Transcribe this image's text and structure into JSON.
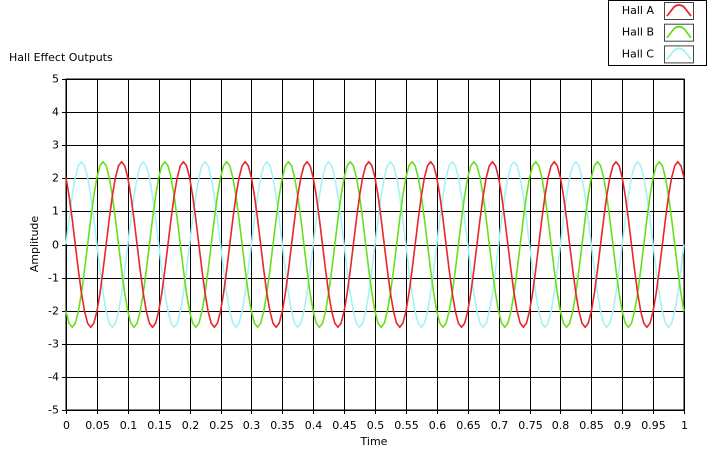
{
  "chart_data": {
    "type": "line",
    "title": "Hall Effect Outputs",
    "xlabel": "Time",
    "ylabel": "Amplitude",
    "xlim": [
      0,
      1
    ],
    "ylim": [
      -5,
      5
    ],
    "xticks": [
      0,
      0.05,
      0.1,
      0.15,
      0.2,
      0.25,
      0.3,
      0.35,
      0.4,
      0.45,
      0.5,
      0.55,
      0.6,
      0.65,
      0.7,
      0.75,
      0.8,
      0.85,
      0.9,
      0.95,
      1
    ],
    "yticks": [
      -5,
      -4,
      -3,
      -2,
      -1,
      0,
      1,
      2,
      3,
      4,
      5
    ],
    "grid": true,
    "legend": "top-right",
    "x": [
      0,
      0.005,
      0.01,
      0.015,
      0.02,
      0.025,
      0.03,
      0.035,
      0.04,
      0.045,
      0.05,
      0.055,
      0.06,
      0.065,
      0.07,
      0.075,
      0.08,
      0.085,
      0.09,
      0.095,
      0.1,
      0.105,
      0.11,
      0.115,
      0.12,
      0.125,
      0.13,
      0.135,
      0.14,
      0.145,
      0.15,
      0.155,
      0.16,
      0.165,
      0.17,
      0.175,
      0.18,
      0.185,
      0.19,
      0.195,
      0.2,
      0.205,
      0.21,
      0.215,
      0.22,
      0.225,
      0.23,
      0.235,
      0.24,
      0.245,
      0.25,
      0.255,
      0.26,
      0.265,
      0.27,
      0.275,
      0.28,
      0.285,
      0.29,
      0.295,
      0.3,
      0.305,
      0.31,
      0.315,
      0.32,
      0.325,
      0.33,
      0.335,
      0.34,
      0.345,
      0.35,
      0.355,
      0.36,
      0.365,
      0.37,
      0.375,
      0.38,
      0.385,
      0.39,
      0.395,
      0.4,
      0.405,
      0.41,
      0.415,
      0.42,
      0.425,
      0.43,
      0.435,
      0.44,
      0.445,
      0.45,
      0.455,
      0.46,
      0.465,
      0.47,
      0.475,
      0.48,
      0.485,
      0.49,
      0.495,
      0.5,
      0.505,
      0.51,
      0.515,
      0.52,
      0.525,
      0.53,
      0.535,
      0.54,
      0.545,
      0.55,
      0.555,
      0.56,
      0.565,
      0.57,
      0.575,
      0.58,
      0.585,
      0.59,
      0.595,
      0.6,
      0.605,
      0.61,
      0.615,
      0.62,
      0.625,
      0.63,
      0.635,
      0.64,
      0.645,
      0.65,
      0.655,
      0.66,
      0.665,
      0.67,
      0.675,
      0.68,
      0.685,
      0.69,
      0.695,
      0.7,
      0.705,
      0.71,
      0.715,
      0.72,
      0.725,
      0.73,
      0.735,
      0.74,
      0.745,
      0.75,
      0.755,
      0.76,
      0.765,
      0.77,
      0.775,
      0.78,
      0.785,
      0.79,
      0.795,
      0.8,
      0.805,
      0.81,
      0.815,
      0.82,
      0.825,
      0.83,
      0.835,
      0.84,
      0.845,
      0.85,
      0.855,
      0.86,
      0.865,
      0.87,
      0.875,
      0.88,
      0.885,
      0.89,
      0.895,
      0.9,
      0.905,
      0.91,
      0.915,
      0.92,
      0.925,
      0.93,
      0.935,
      0.94,
      0.945,
      0.95,
      0.955,
      0.96,
      0.965,
      0.97,
      0.975,
      0.98,
      0.985,
      0.99,
      0.995,
      1
    ],
    "series": [
      {
        "name": "Hall A",
        "color": "#e8262a",
        "values": [
          2.02,
          1.47,
          0.77,
          0,
          -0.77,
          -1.47,
          -2.02,
          -2.38,
          -2.5,
          -2.38,
          -2.02,
          -1.47,
          -0.77,
          0,
          0.77,
          1.47,
          2.02,
          2.38,
          2.5,
          2.38,
          2.02,
          1.47,
          0.77,
          0,
          -0.77,
          -1.47,
          -2.02,
          -2.38,
          -2.5,
          -2.38,
          -2.02,
          -1.47,
          -0.77,
          0,
          0.77,
          1.47,
          2.02,
          2.38,
          2.5,
          2.38,
          2.02,
          1.47,
          0.77,
          0,
          -0.77,
          -1.47,
          -2.02,
          -2.38,
          -2.5,
          -2.38,
          -2.02,
          -1.47,
          -0.77,
          0,
          0.77,
          1.47,
          2.02,
          2.38,
          2.5,
          2.38,
          2.02,
          1.47,
          0.77,
          0,
          -0.77,
          -1.47,
          -2.02,
          -2.38,
          -2.5,
          -2.38,
          -2.02,
          -1.47,
          -0.77,
          0,
          0.77,
          1.47,
          2.02,
          2.38,
          2.5,
          2.38,
          2.02,
          1.47,
          0.77,
          0,
          -0.77,
          -1.47,
          -2.02,
          -2.38,
          -2.5,
          -2.38,
          -2.02,
          -1.47,
          -0.77,
          0,
          0.77,
          1.47,
          2.02,
          2.38,
          2.5,
          2.38,
          2.02,
          1.47,
          0.77,
          0,
          -0.77,
          -1.47,
          -2.02,
          -2.38,
          -2.5,
          -2.38,
          -2.02,
          -1.47,
          -0.77,
          0,
          0.77,
          1.47,
          2.02,
          2.38,
          2.5,
          2.38,
          2.02,
          1.47,
          0.77,
          0,
          -0.77,
          -1.47,
          -2.02,
          -2.38,
          -2.5,
          -2.38,
          -2.02,
          -1.47,
          -0.77,
          0,
          0.77,
          1.47,
          2.02,
          2.38,
          2.5,
          2.38,
          2.02,
          1.47,
          0.77,
          0,
          -0.77,
          -1.47,
          -2.02,
          -2.38,
          -2.5,
          -2.38,
          -2.02,
          -1.47,
          -0.77,
          0,
          0.77,
          1.47,
          2.02,
          2.38,
          2.5,
          2.38,
          2.02,
          1.47,
          0.77,
          0,
          -0.77,
          -1.47,
          -2.02,
          -2.38,
          -2.5,
          -2.38,
          -2.02,
          -1.47,
          -0.77,
          0,
          0.77,
          1.47,
          2.02,
          2.38,
          2.5,
          2.38,
          2.02,
          1.47,
          0.77,
          0,
          -0.77,
          -1.47,
          -2.02,
          -2.38,
          -2.5,
          -2.38,
          -2.02,
          -1.47,
          -0.77,
          0,
          0.77,
          1.47,
          2.02,
          2.38,
          2.5,
          2.38,
          2.02
        ]
      },
      {
        "name": "Hall B",
        "color": "#66e01c",
        "values": [
          -2.02,
          -2.38,
          -2.5,
          -2.38,
          -2.02,
          -1.47,
          -0.77,
          0,
          0.77,
          1.47,
          2.02,
          2.38,
          2.5,
          2.38,
          2.02,
          1.47,
          0.77,
          0,
          -0.77,
          -1.47,
          -2.02,
          -2.38,
          -2.5,
          -2.38,
          -2.02,
          -1.47,
          -0.77,
          0,
          0.77,
          1.47,
          2.02,
          2.38,
          2.5,
          2.38,
          2.02,
          1.47,
          0.77,
          0,
          -0.77,
          -1.47,
          -2.02,
          -2.38,
          -2.5,
          -2.38,
          -2.02,
          -1.47,
          -0.77,
          0,
          0.77,
          1.47,
          2.02,
          2.38,
          2.5,
          2.38,
          2.02,
          1.47,
          0.77,
          0,
          -0.77,
          -1.47,
          -2.02,
          -2.38,
          -2.5,
          -2.38,
          -2.02,
          -1.47,
          -0.77,
          0,
          0.77,
          1.47,
          2.02,
          2.38,
          2.5,
          2.38,
          2.02,
          1.47,
          0.77,
          0,
          -0.77,
          -1.47,
          -2.02,
          -2.38,
          -2.5,
          -2.38,
          -2.02,
          -1.47,
          -0.77,
          0,
          0.77,
          1.47,
          2.02,
          2.38,
          2.5,
          2.38,
          2.02,
          1.47,
          0.77,
          0,
          -0.77,
          -1.47,
          -2.02,
          -2.38,
          -2.5,
          -2.38,
          -2.02,
          -1.47,
          -0.77,
          0,
          0.77,
          1.47,
          2.02,
          2.38,
          2.5,
          2.38,
          2.02,
          1.47,
          0.77,
          0,
          -0.77,
          -1.47,
          -2.02,
          -2.38,
          -2.5,
          -2.38,
          -2.02,
          -1.47,
          -0.77,
          0,
          0.77,
          1.47,
          2.02,
          2.38,
          2.5,
          2.38,
          2.02,
          1.47,
          0.77,
          0,
          -0.77,
          -1.47,
          -2.02,
          -2.38,
          -2.5,
          -2.38,
          -2.02,
          -1.47,
          -0.77,
          0,
          0.77,
          1.47,
          2.02,
          2.38,
          2.5,
          2.38,
          2.02,
          1.47,
          0.77,
          0,
          -0.77,
          -1.47,
          -2.02,
          -2.38,
          -2.5,
          -2.38,
          -2.02,
          -1.47,
          -0.77,
          0,
          0.77,
          1.47,
          2.02,
          2.38,
          2.5,
          2.38,
          2.02,
          1.47,
          0.77,
          0,
          -0.77,
          -1.47,
          -2.02,
          -2.38,
          -2.5,
          -2.38,
          -2.02,
          -1.47,
          -0.77,
          0,
          0.77,
          1.47,
          2.02,
          2.38,
          2.5,
          2.38,
          2.02,
          1.47,
          0.77,
          0,
          -0.77,
          -1.47,
          -2.02
        ]
      },
      {
        "name": "Hall C",
        "color": "#a6f2f2",
        "values": [
          0,
          0.77,
          1.47,
          2.02,
          2.38,
          2.5,
          2.38,
          2.02,
          1.47,
          0.77,
          0,
          -0.77,
          -1.47,
          -2.02,
          -2.38,
          -2.5,
          -2.38,
          -2.02,
          -1.47,
          -0.77,
          0,
          0.77,
          1.47,
          2.02,
          2.38,
          2.5,
          2.38,
          2.02,
          1.47,
          0.77,
          0,
          -0.77,
          -1.47,
          -2.02,
          -2.38,
          -2.5,
          -2.38,
          -2.02,
          -1.47,
          -0.77,
          0,
          0.77,
          1.47,
          2.02,
          2.38,
          2.5,
          2.38,
          2.02,
          1.47,
          0.77,
          0,
          -0.77,
          -1.47,
          -2.02,
          -2.38,
          -2.5,
          -2.38,
          -2.02,
          -1.47,
          -0.77,
          0,
          0.77,
          1.47,
          2.02,
          2.38,
          2.5,
          2.38,
          2.02,
          1.47,
          0.77,
          0,
          -0.77,
          -1.47,
          -2.02,
          -2.38,
          -2.5,
          -2.38,
          -2.02,
          -1.47,
          -0.77,
          0,
          0.77,
          1.47,
          2.02,
          2.38,
          2.5,
          2.38,
          2.02,
          1.47,
          0.77,
          0,
          -0.77,
          -1.47,
          -2.02,
          -2.38,
          -2.5,
          -2.38,
          -2.02,
          -1.47,
          -0.77,
          0,
          0.77,
          1.47,
          2.02,
          2.38,
          2.5,
          2.38,
          2.02,
          1.47,
          0.77,
          0,
          -0.77,
          -1.47,
          -2.02,
          -2.38,
          -2.5,
          -2.38,
          -2.02,
          -1.47,
          -0.77,
          0,
          0.77,
          1.47,
          2.02,
          2.38,
          2.5,
          2.38,
          2.02,
          1.47,
          0.77,
          0,
          -0.77,
          -1.47,
          -2.02,
          -2.38,
          -2.5,
          -2.38,
          -2.02,
          -1.47,
          -0.77,
          0,
          0.77,
          1.47,
          2.02,
          2.38,
          2.5,
          2.38,
          2.02,
          1.47,
          0.77,
          0,
          -0.77,
          -1.47,
          -2.02,
          -2.38,
          -2.5,
          -2.38,
          -2.02,
          -1.47,
          -0.77,
          0,
          0.77,
          1.47,
          2.02,
          2.38,
          2.5,
          2.38,
          2.02,
          1.47,
          0.77,
          0,
          -0.77,
          -1.47,
          -2.02,
          -2.38,
          -2.5,
          -2.38,
          -2.02,
          -1.47,
          -0.77,
          0,
          0.77,
          1.47,
          2.02,
          2.38,
          2.5,
          2.38,
          2.02,
          1.47,
          0.77,
          0,
          -0.77,
          -1.47,
          -2.02,
          -2.38,
          -2.5,
          -2.38,
          -2.02,
          -1.47,
          -0.77,
          0
        ]
      }
    ]
  }
}
